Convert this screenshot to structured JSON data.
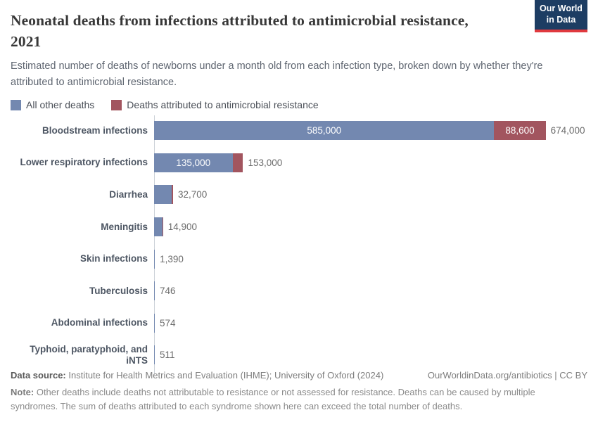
{
  "header": {
    "title_line1": "Neonatal deaths from infections attributed to antimicrobial resistance,",
    "title_line2": "2021",
    "subtitle": "Estimated number of deaths of newborns under a month old from each infection type, broken down by whether they're attributed to antimicrobial resistance.",
    "logo_line1": "Our World",
    "logo_line2": "in Data"
  },
  "legend": [
    {
      "label": "All other deaths",
      "color": "#7388b0"
    },
    {
      "label": "Deaths attributed to antimicrobial resistance",
      "color": "#a2555f"
    }
  ],
  "chart_data": {
    "type": "bar",
    "orientation": "horizontal",
    "title": "Neonatal deaths from infections attributed to antimicrobial resistance, 2021",
    "xlim": [
      0,
      674000
    ],
    "grid": false,
    "legend_position": "top",
    "series_names": [
      "All other deaths",
      "Deaths attributed to antimicrobial resistance"
    ],
    "rows": [
      {
        "category": "Bloodstream infections",
        "other": 585000,
        "amr": 88600,
        "total": 674000,
        "other_label": "585,000",
        "amr_label": "88,600",
        "total_label": "674,000"
      },
      {
        "category": "Lower respiratory infections",
        "other": 135000,
        "amr": 18000,
        "total": 153000,
        "other_label": "135,000",
        "amr_label": null,
        "total_label": "153,000"
      },
      {
        "category": "Diarrhea",
        "other": 30700,
        "amr": 2000,
        "total": 32700,
        "other_label": null,
        "amr_label": null,
        "total_label": "32,700"
      },
      {
        "category": "Meningitis",
        "other": 14200,
        "amr": 700,
        "total": 14900,
        "other_label": null,
        "amr_label": null,
        "total_label": "14,900"
      },
      {
        "category": "Skin infections",
        "other": 1390,
        "amr": 0,
        "total": 1390,
        "other_label": null,
        "amr_label": null,
        "total_label": "1,390"
      },
      {
        "category": "Tuberculosis",
        "other": 746,
        "amr": 0,
        "total": 746,
        "other_label": null,
        "amr_label": null,
        "total_label": "746"
      },
      {
        "category": "Abdominal infections",
        "other": 574,
        "amr": 0,
        "total": 574,
        "other_label": null,
        "amr_label": null,
        "total_label": "574"
      },
      {
        "category": "Typhoid, paratyphoid, and iNTS",
        "other": 511,
        "amr": 0,
        "total": 511,
        "other_label": null,
        "amr_label": null,
        "total_label": "511"
      }
    ]
  },
  "footer": {
    "source_label": "Data source:",
    "source_text": " Institute for Health Metrics and Evaluation (IHME); University of Oxford (2024)",
    "link": "OurWorldinData.org/antibiotics | CC BY",
    "note_label": "Note:",
    "note_text": " Other deaths include deaths not attributable to resistance or not assessed for resistance. Deaths can be caused by multiple syndromes. The sum of deaths attributed to each syndrome shown here can exceed the total number of deaths."
  },
  "colors": {
    "other_deaths": "#7388b0",
    "amr_deaths": "#a2555f",
    "logo_bg": "#1d3d63",
    "logo_accent": "#e0393e",
    "axis": "#ccd1d8"
  }
}
